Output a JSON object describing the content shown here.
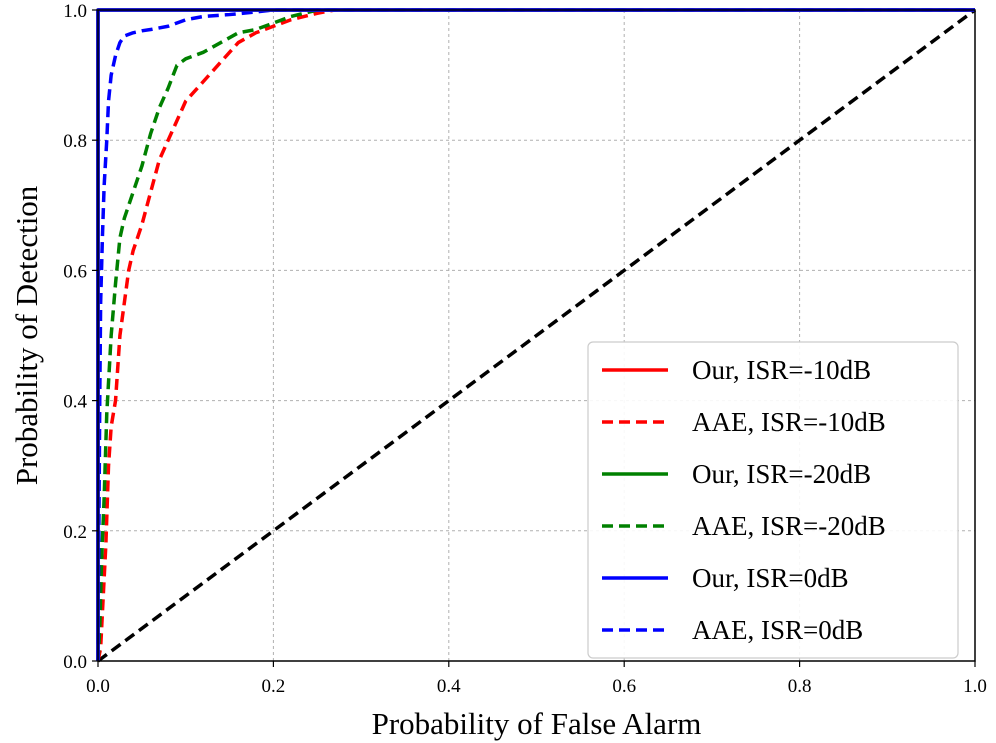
{
  "chart_data": {
    "type": "line",
    "title": "",
    "xlabel": "Probability of False Alarm",
    "ylabel": "Probability of Detection",
    "xlim": [
      0,
      1
    ],
    "ylim": [
      0,
      1
    ],
    "xticks": [
      "0.0",
      "0.2",
      "0.4",
      "0.6",
      "0.8",
      "1.0"
    ],
    "yticks": [
      "0.0",
      "0.2",
      "0.4",
      "0.6",
      "0.8",
      "1.0"
    ],
    "grid": true,
    "legend_position": "lower-right",
    "series": [
      {
        "name": "Our, ISR=-10dB",
        "color": "#ff0000",
        "style": "solid",
        "x": [
          0,
          0,
          1.0
        ],
        "y": [
          0,
          1.0,
          1.0
        ]
      },
      {
        "name": "AAE, ISR=-10dB",
        "color": "#ff0000",
        "style": "dashed",
        "x": [
          0.0,
          0.003,
          0.006,
          0.009,
          0.012,
          0.015,
          0.02,
          0.025,
          0.03,
          0.035,
          0.04,
          0.05,
          0.06,
          0.07,
          0.08,
          0.09,
          0.1,
          0.12,
          0.14,
          0.16,
          0.18,
          0.2,
          0.22,
          0.25,
          0.27,
          0.3,
          1.0
        ],
        "y": [
          0.0,
          0.02,
          0.1,
          0.18,
          0.3,
          0.36,
          0.4,
          0.5,
          0.55,
          0.6,
          0.63,
          0.67,
          0.72,
          0.77,
          0.8,
          0.83,
          0.86,
          0.89,
          0.92,
          0.95,
          0.965,
          0.975,
          0.985,
          0.995,
          1.0,
          1.0,
          1.0
        ]
      },
      {
        "name": "Our, ISR=-20dB",
        "color": "#008000",
        "style": "solid",
        "x": [
          0,
          0,
          1.0
        ],
        "y": [
          0,
          1.0,
          1.0
        ]
      },
      {
        "name": "AAE, ISR=-20dB",
        "color": "#008000",
        "style": "dashed",
        "x": [
          0.0,
          0.002,
          0.004,
          0.007,
          0.01,
          0.015,
          0.02,
          0.025,
          0.03,
          0.04,
          0.05,
          0.06,
          0.07,
          0.08,
          0.09,
          0.1,
          0.12,
          0.14,
          0.16,
          0.18,
          0.2,
          0.22,
          0.25,
          0.27,
          1.0
        ],
        "y": [
          0.0,
          0.05,
          0.15,
          0.25,
          0.38,
          0.5,
          0.58,
          0.65,
          0.68,
          0.72,
          0.76,
          0.81,
          0.85,
          0.88,
          0.915,
          0.925,
          0.935,
          0.95,
          0.965,
          0.97,
          0.98,
          0.99,
          1.0,
          1.0,
          1.0
        ]
      },
      {
        "name": "Our, ISR=0dB",
        "color": "#0000ff",
        "style": "solid",
        "x": [
          0,
          0,
          1.0
        ],
        "y": [
          0,
          1.0,
          1.0
        ]
      },
      {
        "name": "AAE, ISR=0dB",
        "color": "#0000ff",
        "style": "dashed",
        "x": [
          0.0,
          0.001,
          0.002,
          0.003,
          0.005,
          0.007,
          0.01,
          0.012,
          0.015,
          0.02,
          0.025,
          0.03,
          0.04,
          0.05,
          0.06,
          0.08,
          0.1,
          0.12,
          0.15,
          0.18,
          0.2,
          0.22,
          1.0
        ],
        "y": [
          0.0,
          0.2,
          0.4,
          0.55,
          0.65,
          0.73,
          0.8,
          0.86,
          0.9,
          0.93,
          0.95,
          0.96,
          0.965,
          0.968,
          0.97,
          0.975,
          0.985,
          0.99,
          0.993,
          0.997,
          1.0,
          1.0,
          1.0
        ]
      },
      {
        "name": "",
        "color": "#000000",
        "style": "dashed",
        "x": [
          0,
          1
        ],
        "y": [
          0,
          1
        ]
      }
    ]
  }
}
